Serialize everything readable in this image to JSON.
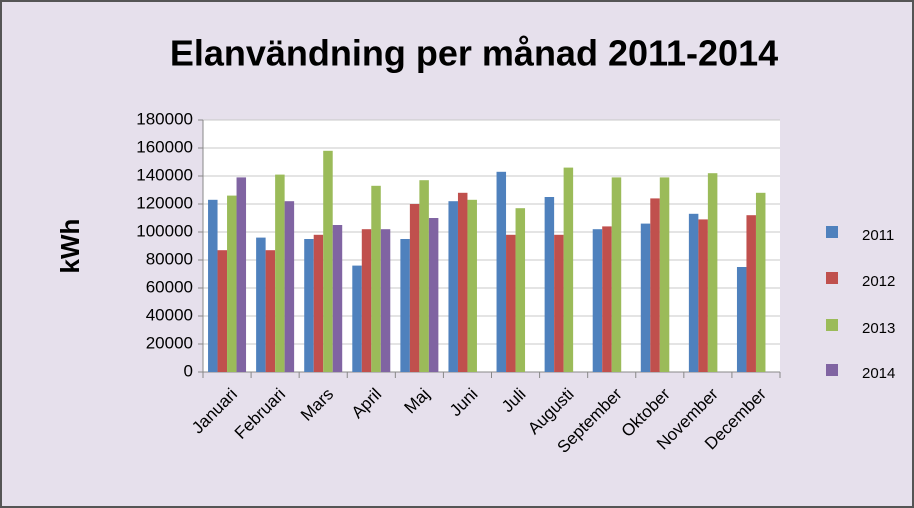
{
  "chart_data": {
    "type": "bar",
    "title": "Elanvändning per månad 2011-2014",
    "ylabel": "kWh",
    "categories": [
      "Januari",
      "Februari",
      "Mars",
      "April",
      "Maj",
      "Juni",
      "Juli",
      "Augusti",
      "September",
      "Oktober",
      "November",
      "December"
    ],
    "series": [
      {
        "name": "2011",
        "color": "#4f81bd",
        "values": [
          123000,
          96000,
          95000,
          76000,
          95000,
          122000,
          143000,
          125000,
          102000,
          106000,
          113000,
          75000
        ]
      },
      {
        "name": "2012",
        "color": "#c0504d",
        "values": [
          87000,
          87000,
          98000,
          102000,
          120000,
          128000,
          98000,
          98000,
          104000,
          124000,
          109000,
          112000
        ]
      },
      {
        "name": "2013",
        "color": "#9bbb59",
        "values": [
          126000,
          141000,
          158000,
          133000,
          137000,
          123000,
          117000,
          146000,
          139000,
          139000,
          142000,
          128000
        ]
      },
      {
        "name": "2014",
        "color": "#8064a2",
        "values": [
          139000,
          122000,
          105000,
          102000,
          110000,
          null,
          null,
          null,
          null,
          null,
          null,
          null
        ]
      }
    ],
    "ylim": [
      0,
      180000
    ],
    "yticks": [
      0,
      20000,
      40000,
      60000,
      80000,
      100000,
      120000,
      140000,
      160000,
      180000
    ],
    "grid": true,
    "legend": "right"
  }
}
